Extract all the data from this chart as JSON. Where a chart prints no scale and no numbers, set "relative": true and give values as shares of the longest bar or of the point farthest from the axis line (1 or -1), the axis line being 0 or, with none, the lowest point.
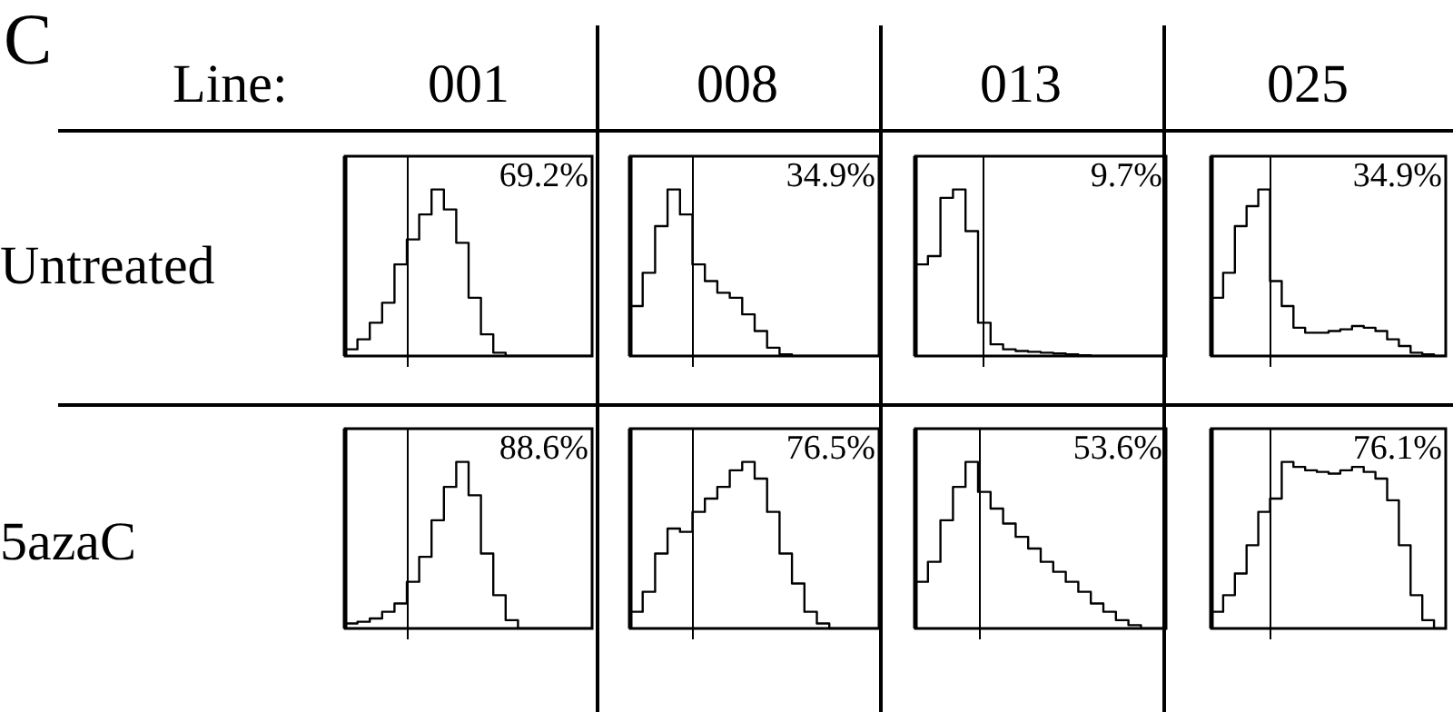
{
  "chart_data": [
    {
      "type": "step",
      "title": "001",
      "ylabel": "Untreated",
      "annotations": [
        "C",
        "Line:",
        "69.2%"
      ],
      "relative": true,
      "tick_labels": false,
      "categories": [
        null,
        null,
        null,
        null,
        null,
        null,
        null,
        null,
        null,
        null,
        null,
        null,
        null,
        null,
        null,
        null,
        null,
        null,
        null,
        null,
        null
      ],
      "values": [
        0.04,
        0.1,
        0.2,
        0.32,
        0.55,
        0.7,
        0.85,
        1,
        0.88,
        0.68,
        0.35,
        0.13,
        0.02,
        0,
        0,
        0,
        0,
        0,
        0,
        0,
        0
      ],
      "color": "#000000"
    },
    {
      "type": "step",
      "title": "008",
      "annotations": [
        "34.9%"
      ],
      "relative": true,
      "tick_labels": false,
      "categories": [
        null,
        null,
        null,
        null,
        null,
        null,
        null,
        null,
        null,
        null,
        null,
        null,
        null,
        null,
        null,
        null,
        null,
        null,
        null,
        null,
        null
      ],
      "values": [
        0.3,
        0.5,
        0.78,
        1,
        0.85,
        0.55,
        0.45,
        0.38,
        0.35,
        0.25,
        0.15,
        0.05,
        0.01,
        0,
        0,
        0,
        0,
        0,
        0,
        0,
        0
      ],
      "color": "#000000"
    },
    {
      "type": "step",
      "title": "013",
      "annotations": [
        "9.7%"
      ],
      "relative": true,
      "tick_labels": false,
      "categories": [
        null,
        null,
        null,
        null,
        null,
        null,
        null,
        null,
        null,
        null,
        null,
        null,
        null,
        null,
        null,
        null,
        null,
        null,
        null,
        null,
        null
      ],
      "values": [
        0.55,
        0.6,
        0.95,
        1,
        0.75,
        0.2,
        0.07,
        0.04,
        0.03,
        0.025,
        0.02,
        0.015,
        0.01,
        0.005,
        0,
        0,
        0,
        0,
        0,
        0,
        0
      ],
      "color": "#000000"
    },
    {
      "type": "step",
      "title": "025",
      "annotations": [
        "34.9%"
      ],
      "relative": true,
      "tick_labels": false,
      "categories": [
        null,
        null,
        null,
        null,
        null,
        null,
        null,
        null,
        null,
        null,
        null,
        null,
        null,
        null,
        null,
        null,
        null,
        null,
        null,
        null,
        null
      ],
      "values": [
        0.35,
        0.5,
        0.78,
        0.9,
        1,
        0.45,
        0.3,
        0.17,
        0.14,
        0.14,
        0.15,
        0.16,
        0.18,
        0.17,
        0.15,
        0.1,
        0.06,
        0.02,
        0.01,
        0,
        0
      ],
      "color": "#000000"
    },
    {
      "type": "step",
      "ylabel": "5azaC",
      "annotations": [
        "88.6%"
      ],
      "relative": true,
      "tick_labels": false,
      "categories": [
        null,
        null,
        null,
        null,
        null,
        null,
        null,
        null,
        null,
        null,
        null,
        null,
        null,
        null,
        null,
        null,
        null,
        null,
        null,
        null,
        null
      ],
      "values": [
        0.03,
        0.04,
        0.06,
        0.1,
        0.15,
        0.28,
        0.43,
        0.65,
        0.85,
        1,
        0.8,
        0.45,
        0.2,
        0.05,
        0,
        0,
        0,
        0,
        0,
        0,
        0
      ],
      "color": "#000000"
    },
    {
      "type": "step",
      "annotations": [
        "76.5%"
      ],
      "relative": true,
      "tick_labels": false,
      "categories": [
        null,
        null,
        null,
        null,
        null,
        null,
        null,
        null,
        null,
        null,
        null,
        null,
        null,
        null,
        null,
        null,
        null,
        null,
        null,
        null,
        null
      ],
      "values": [
        0.1,
        0.22,
        0.45,
        0.6,
        0.58,
        0.7,
        0.78,
        0.85,
        0.95,
        1,
        0.9,
        0.7,
        0.45,
        0.27,
        0.1,
        0.03,
        0,
        0,
        0,
        0,
        0
      ],
      "color": "#000000"
    },
    {
      "type": "step",
      "annotations": [
        "53.6%"
      ],
      "relative": true,
      "tick_labels": false,
      "categories": [
        null,
        null,
        null,
        null,
        null,
        null,
        null,
        null,
        null,
        null,
        null,
        null,
        null,
        null,
        null,
        null,
        null,
        null,
        null,
        null,
        null
      ],
      "values": [
        0.28,
        0.4,
        0.65,
        0.85,
        1,
        0.82,
        0.72,
        0.63,
        0.55,
        0.48,
        0.4,
        0.34,
        0.28,
        0.22,
        0.15,
        0.1,
        0.05,
        0.02,
        0,
        0,
        0
      ],
      "color": "#000000"
    },
    {
      "type": "step",
      "annotations": [
        "76.1%"
      ],
      "relative": true,
      "tick_labels": false,
      "categories": [
        null,
        null,
        null,
        null,
        null,
        null,
        null,
        null,
        null,
        null,
        null,
        null,
        null,
        null,
        null,
        null,
        null,
        null,
        null,
        null,
        null
      ],
      "values": [
        0.1,
        0.2,
        0.33,
        0.5,
        0.7,
        0.78,
        1,
        0.97,
        0.95,
        0.94,
        0.93,
        0.95,
        0.97,
        0.94,
        0.9,
        0.77,
        0.5,
        0.2,
        0.05,
        0,
        0
      ],
      "color": "#000000"
    }
  ]
}
